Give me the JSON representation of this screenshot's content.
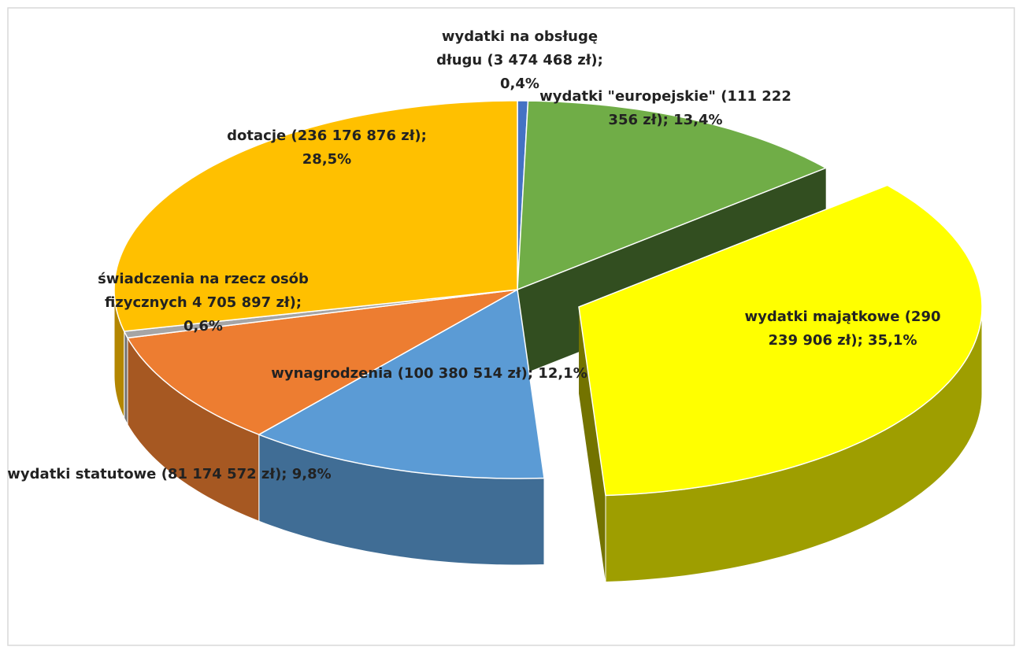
{
  "chart_data": {
    "type": "pie3d",
    "categories": [
      "wydatki na obsługę długu",
      "wydatki \"europejskie\"",
      "wydatki majątkowe",
      "wynagrodzenia",
      "wydatki statutowe",
      "świadczenia na rzecz osób fizycznych",
      "dotacje"
    ],
    "amounts": [
      3474468,
      111222356,
      290239906,
      100380514,
      81174572,
      4705897,
      236176876
    ],
    "amount_labels": [
      "(3 474 468 zł);",
      "(111 222 356 zł);",
      "(290 239 906 zł);",
      "(100 380 514 zł);",
      "(81 174 572 zł);",
      "4 705 897 zł);",
      "(236 176 876 zł);"
    ],
    "values": [
      0.4,
      13.4,
      35.1,
      12.1,
      9.8,
      0.6,
      28.5
    ],
    "value_labels": [
      "0,4%",
      "13,4%",
      "35,1%",
      "12,1%",
      "9,8%",
      "0,6%",
      "28,5%"
    ],
    "colors": [
      "#4472c4",
      "#70ad47",
      "#ffff00",
      "#5b9bd5",
      "#ed7d31",
      "#a5a5a5",
      "#ffc000"
    ],
    "exploded": 2
  }
}
